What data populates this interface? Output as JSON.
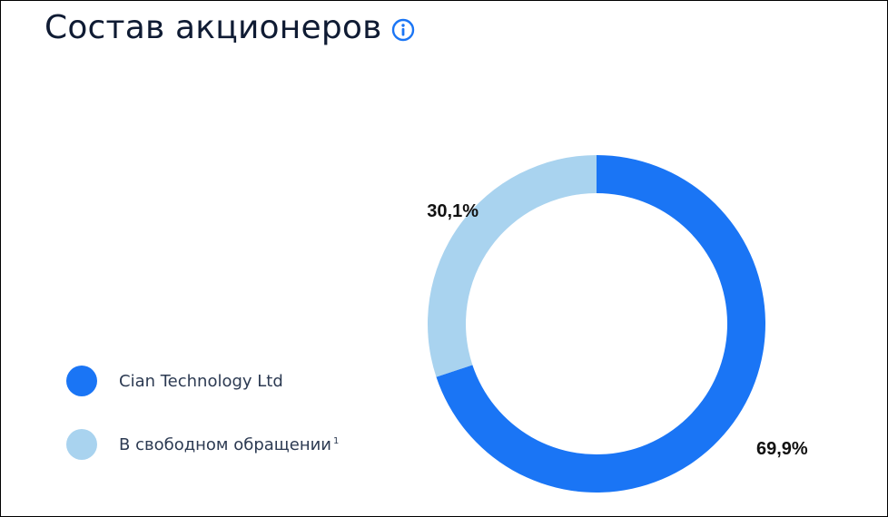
{
  "header": {
    "title": "Состав акционеров",
    "info_icon": "info-icon"
  },
  "colors": {
    "primary": "#1a75f5",
    "secondary": "#a9d3ef",
    "title": "#0f1b33"
  },
  "chart_data": {
    "type": "pie",
    "donut": true,
    "title": "Состав акционеров",
    "series": [
      {
        "name": "Cian Technology Ltd",
        "value": 69.9,
        "label": "69,9%",
        "color": "#1a75f5"
      },
      {
        "name": "В свободном обращении",
        "value": 30.1,
        "label": "30,1%",
        "color": "#a9d3ef",
        "footnote": "1"
      }
    ],
    "legend": "bottom-left"
  }
}
